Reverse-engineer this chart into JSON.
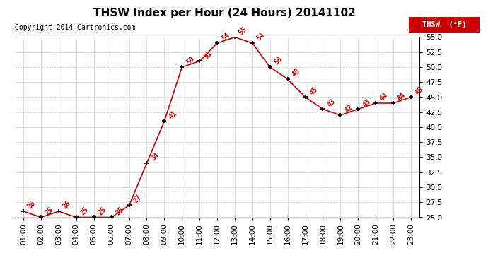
{
  "title": "THSW Index per Hour (24 Hours) 20141102",
  "copyright": "Copyright 2014 Cartronics.com",
  "legend_label": "THSW  (°F)",
  "ylim": [
    25.0,
    55.0
  ],
  "yticks": [
    25.0,
    27.5,
    30.0,
    32.5,
    35.0,
    37.5,
    40.0,
    42.5,
    45.0,
    47.5,
    50.0,
    52.5,
    55.0
  ],
  "x_labels": [
    "01:00",
    "02:00",
    "03:00",
    "04:00",
    "05:00",
    "06:00",
    "07:00",
    "08:00",
    "09:00",
    "10:00",
    "11:00",
    "12:00",
    "13:00",
    "14:00",
    "15:00",
    "16:00",
    "17:00",
    "18:00",
    "19:00",
    "20:00",
    "21:00",
    "22:00",
    "23:00"
  ],
  "data_x": [
    1,
    2,
    3,
    4,
    5,
    6,
    7,
    8,
    9,
    10,
    11,
    12,
    13,
    14,
    15,
    16,
    17,
    18,
    19,
    20,
    21,
    22,
    23
  ],
  "data_y": [
    26,
    25,
    26,
    25,
    25,
    25,
    27,
    34,
    41,
    50,
    51,
    54,
    55,
    54,
    50,
    48,
    45,
    43,
    42,
    43,
    44,
    44,
    45
  ],
  "line_color": "#cc0000",
  "marker_color": "#000000",
  "bg_color": "#ffffff",
  "grid_color": "#aaaaaa",
  "title_fontsize": 11,
  "tick_fontsize": 7.5,
  "annot_fontsize": 7
}
